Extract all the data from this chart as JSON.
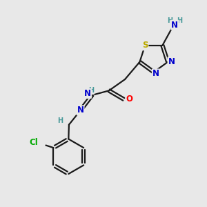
{
  "background_color": "#e8e8e8",
  "bond_color": "#1a1a1a",
  "bond_width": 1.6,
  "colors": {
    "N": "#0000cc",
    "O": "#ff0000",
    "S": "#bbaa00",
    "Cl": "#00aa00",
    "C": "#1a1a1a",
    "H": "#4a9a9a"
  },
  "font_size_atom": 8.5,
  "font_size_h": 7.0,
  "figsize": [
    3.0,
    3.0
  ],
  "dpi": 100,
  "xlim": [
    0,
    10
  ],
  "ylim": [
    0,
    10
  ]
}
